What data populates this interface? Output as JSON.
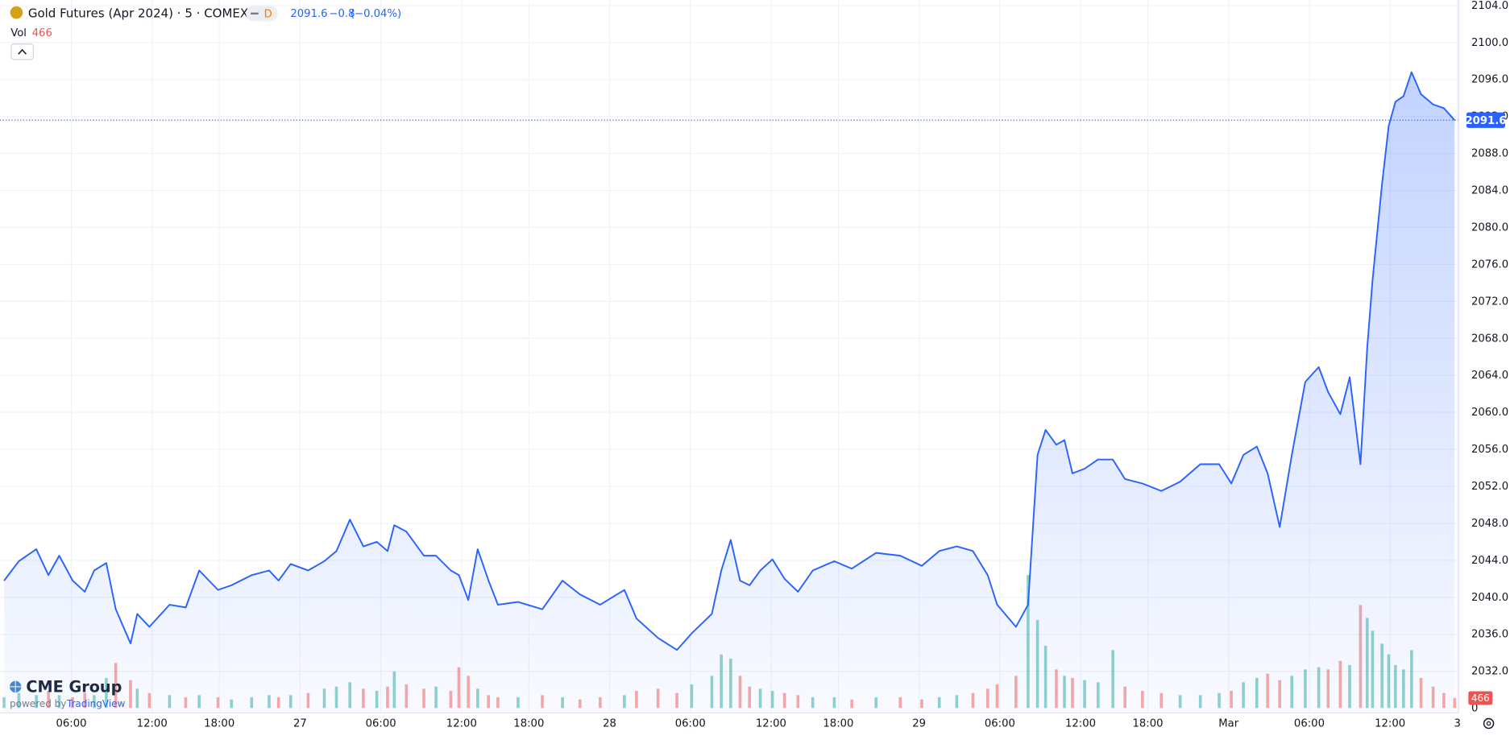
{
  "header": {
    "title": "Gold Futures (Apr 2024) · 5 · COMEX",
    "interval_badge": "D",
    "change": "−0.8",
    "change_pct": "(−0.04%)"
  },
  "branding": {
    "logo": "CME Group",
    "powered": "powered by",
    "provider": "TradingView"
  },
  "chart_data": {
    "type": "area",
    "x": [
      1.0,
      2.1,
      3.4,
      4.3,
      5.1,
      6.1,
      7.0,
      7.7,
      8.6,
      9.3,
      10.4,
      10.9,
      11.8,
      13.3,
      14.5,
      15.5,
      16.9,
      17.9,
      19.4,
      20.7,
      21.4,
      22.3,
      23.6,
      24.8,
      25.7,
      26.7,
      27.7,
      28.7,
      29.5,
      30.0,
      30.9,
      32.2,
      33.1,
      34.2,
      34.8,
      35.5,
      36.2,
      37.0,
      37.7,
      39.2,
      41.0,
      42.5,
      43.8,
      45.3,
      47.1,
      48.0,
      49.6,
      51.0,
      52.1,
      53.6,
      54.3,
      55.0,
      55.7,
      56.4,
      57.2,
      58.1,
      59.0,
      60.0,
      61.1,
      62.7,
      64.0,
      65.8,
      67.6,
      69.2,
      70.5,
      71.8,
      73.0,
      74.1,
      74.8,
      76.2,
      77.1,
      77.8,
      78.4,
      79.2,
      79.8,
      80.4,
      81.3,
      82.3,
      83.4,
      84.3,
      85.6,
      87.0,
      88.4,
      89.9,
      91.3,
      92.2,
      93.1,
      94.1,
      94.9,
      95.8,
      96.7,
      97.7,
      98.7,
      99.4,
      100.3,
      101.0,
      101.8,
      102.3,
      102.7,
      103.4,
      103.9,
      104.4,
      105.0,
      105.6,
      106.3,
      107.2,
      108.0,
      108.8
    ],
    "series": [
      {
        "color": "#2962ff",
        "values": [
          2041.8,
          2043.9,
          2045.2,
          2042.4,
          2044.5,
          2041.8,
          2040.6,
          2042.9,
          2043.7,
          2038.7,
          2035.0,
          2038.2,
          2036.8,
          2039.2,
          2038.9,
          2042.9,
          2040.8,
          2041.3,
          2042.4,
          2042.9,
          2041.8,
          2043.6,
          2042.9,
          2043.9,
          2045.0,
          2048.4,
          2045.5,
          2046.0,
          2045.0,
          2047.8,
          2047.1,
          2044.5,
          2044.5,
          2042.9,
          2042.4,
          2039.7,
          2045.2,
          2041.8,
          2039.2,
          2039.5,
          2038.7,
          2041.8,
          2040.3,
          2039.2,
          2040.8,
          2037.7,
          2035.6,
          2034.3,
          2036.1,
          2038.2,
          2042.9,
          2046.2,
          2041.8,
          2041.3,
          2042.9,
          2044.1,
          2042.0,
          2040.6,
          2042.9,
          2043.9,
          2043.1,
          2044.8,
          2044.5,
          2043.4,
          2045.0,
          2045.5,
          2045.0,
          2042.4,
          2039.2,
          2036.8,
          2039.2,
          2055.4,
          2058.1,
          2056.5,
          2057.0,
          2053.4,
          2053.9,
          2054.9,
          2054.9,
          2052.8,
          2052.3,
          2051.5,
          2052.5,
          2054.4,
          2054.4,
          2052.3,
          2055.4,
          2056.3,
          2053.4,
          2047.6,
          2055.4,
          2063.3,
          2064.9,
          2062.2,
          2059.8,
          2063.8,
          2054.4,
          2067.0,
          2074.3,
          2084.7,
          2091.0,
          2093.6,
          2094.2,
          2096.8,
          2094.4,
          2093.3,
          2092.9,
          2091.6
        ]
      },
      {
        "name": "Vol",
        "axis": "y2",
        "up_color": "#26a69a",
        "down_color": "#ef5350",
        "values": [
          500,
          700,
          600,
          800,
          600,
          500,
          700,
          600,
          1400,
          2100,
          1300,
          900,
          700,
          600,
          500,
          600,
          500,
          400,
          500,
          600,
          500,
          600,
          700,
          900,
          1000,
          1200,
          900,
          800,
          1000,
          1700,
          1100,
          900,
          1000,
          800,
          1900,
          1500,
          900,
          600,
          500,
          500,
          600,
          500,
          400,
          500,
          600,
          800,
          900,
          700,
          1100,
          1500,
          2500,
          2300,
          1500,
          1000,
          900,
          800,
          700,
          600,
          500,
          500,
          400,
          500,
          500,
          400,
          500,
          600,
          700,
          900,
          1100,
          1500,
          6200,
          4100,
          2900,
          1800,
          1500,
          1400,
          1300,
          1200,
          2700,
          1000,
          800,
          700,
          600,
          600,
          700,
          800,
          1200,
          1400,
          1600,
          1300,
          1500,
          1800,
          1900,
          1800,
          2200,
          2000,
          4800,
          4200,
          3600,
          3000,
          2500,
          2000,
          1800,
          2700,
          1400,
          1000,
          700,
          466
        ]
      }
    ],
    "xlim": [
      0.7,
      109.1
    ],
    "xticks": [
      {
        "value": 6,
        "label": "06:00"
      },
      {
        "value": 12,
        "label": "12:00"
      },
      {
        "value": 17,
        "label": "18:00"
      },
      {
        "value": 23,
        "label": "27"
      },
      {
        "value": 29,
        "label": "06:00"
      },
      {
        "value": 35,
        "label": "12:00"
      },
      {
        "value": 40,
        "label": "18:00"
      },
      {
        "value": 46,
        "label": "28"
      },
      {
        "value": 52,
        "label": "06:00"
      },
      {
        "value": 58,
        "label": "12:00"
      },
      {
        "value": 63,
        "label": "18:00"
      },
      {
        "value": 69,
        "label": "29"
      },
      {
        "value": 75,
        "label": "06:00"
      },
      {
        "value": 81,
        "label": "12:00"
      },
      {
        "value": 86,
        "label": "18:00"
      },
      {
        "value": 92,
        "label": "Mar"
      },
      {
        "value": 98,
        "label": "06:00"
      },
      {
        "value": 104,
        "label": "12:00"
      },
      {
        "value": 109,
        "label": "3"
      }
    ],
    "ylim": [
      2027.5,
      2104.6
    ],
    "yticks": [
      {
        "value": 2032,
        "label": "2032.0"
      },
      {
        "value": 2036,
        "label": "2036.0"
      },
      {
        "value": 2040,
        "label": "2040.0"
      },
      {
        "value": 2044,
        "label": "2044.0"
      },
      {
        "value": 2048,
        "label": "2048.0"
      },
      {
        "value": 2052,
        "label": "2052.0"
      },
      {
        "value": 2056,
        "label": "2056.0"
      },
      {
        "value": 2060,
        "label": "2060.0"
      },
      {
        "value": 2064,
        "label": "2064.0"
      },
      {
        "value": 2068,
        "label": "2068.0"
      },
      {
        "value": 2072,
        "label": "2072.0"
      },
      {
        "value": 2076,
        "label": "2076.0"
      },
      {
        "value": 2080,
        "label": "2080.0"
      },
      {
        "value": 2084,
        "label": "2084.0"
      },
      {
        "value": 2088,
        "label": "2088.0"
      },
      {
        "value": 2092,
        "label": "2092.0"
      },
      {
        "value": 2096,
        "label": "2096.0"
      },
      {
        "value": 2100,
        "label": "2100.0"
      },
      {
        "value": 2104,
        "label": "2104.0"
      }
    ],
    "y2lim": [
      0,
      33000
    ],
    "y2ticks": [
      0
    ],
    "grid": true
  }
}
